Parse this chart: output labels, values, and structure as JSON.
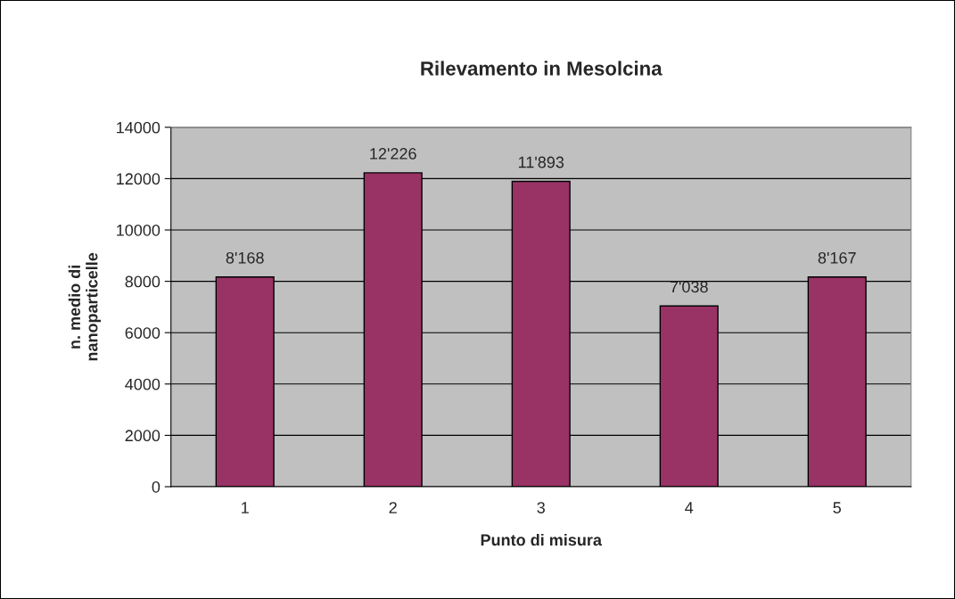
{
  "chart_data": {
    "type": "bar",
    "title": "Rilevamento in Mesolcina",
    "xlabel": "Punto di misura",
    "ylabel": "n. medio di\nnanoparticelle",
    "categories": [
      "1",
      "2",
      "3",
      "4",
      "5"
    ],
    "values": [
      8168,
      12226,
      11893,
      7038,
      8167
    ],
    "value_labels": [
      "8'168",
      "12'226",
      "11'893",
      "7'038",
      "8'167"
    ],
    "color": "#993366",
    "ylim": [
      0,
      14000
    ],
    "yticks": [
      0,
      2000,
      4000,
      6000,
      8000,
      10000,
      12000,
      14000
    ],
    "grid": "y",
    "legend": false
  }
}
